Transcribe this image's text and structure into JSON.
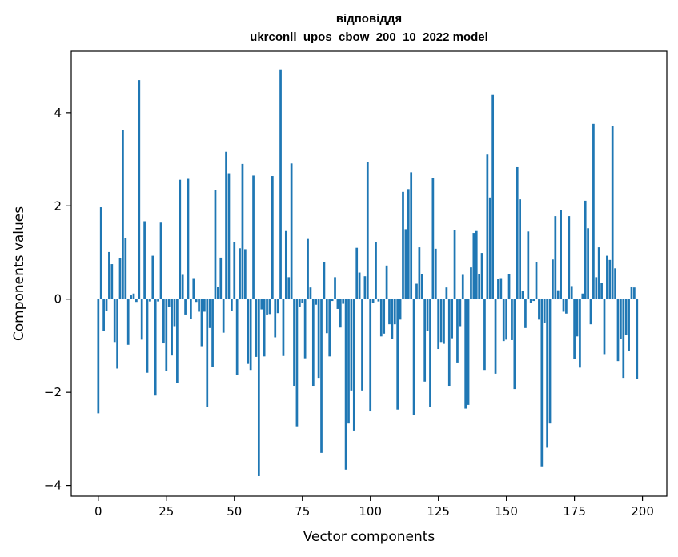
{
  "chart_data": {
    "type": "bar",
    "title_line1": "відповіддя",
    "title_line2": "ukrconll_upos_cbow_200_10_2022 model",
    "xlabel": "Vector components",
    "ylabel": "Components values",
    "xlim": [
      -9.95,
      208.95
    ],
    "ylim": [
      -4.23,
      5.32
    ],
    "x_ticks": [
      0,
      25,
      50,
      75,
      100,
      125,
      150,
      175,
      200
    ],
    "y_ticks": [
      -4,
      -2,
      0,
      2,
      4
    ],
    "y_tick_labels": [
      "−4",
      "−2",
      "0",
      "2",
      "4"
    ],
    "bar_color": "#1f77b4",
    "values": [
      -2.45,
      1.97,
      -0.68,
      -0.25,
      1.01,
      0.75,
      -0.92,
      -1.49,
      0.88,
      3.62,
      1.31,
      -0.98,
      0.08,
      0.12,
      -0.06,
      4.7,
      -0.87,
      1.67,
      -1.58,
      -0.05,
      0.93,
      -2.07,
      -0.05,
      1.64,
      -0.95,
      -1.54,
      -0.16,
      -1.21,
      -0.58,
      -1.8,
      2.56,
      0.52,
      -0.33,
      2.58,
      -0.43,
      0.45,
      -0.06,
      -0.27,
      -1.01,
      -0.27,
      -2.31,
      -0.62,
      -1.45,
      2.34,
      0.27,
      0.89,
      -0.72,
      3.16,
      2.7,
      -0.26,
      1.22,
      -1.62,
      1.09,
      2.9,
      1.07,
      -1.39,
      -1.52,
      2.65,
      -1.24,
      -3.8,
      -0.22,
      -1.23,
      -0.33,
      -0.32,
      2.64,
      -0.82,
      -0.3,
      4.93,
      -1.22,
      1.46,
      0.47,
      2.91,
      -1.86,
      -2.73,
      -0.17,
      -0.08,
      -1.27,
      1.29,
      0.25,
      -1.86,
      -0.12,
      -1.69,
      -3.3,
      0.8,
      -0.73,
      -1.23,
      -0.04,
      0.47,
      -0.21,
      -0.61,
      -0.1,
      -3.66,
      -2.67,
      -1.96,
      -2.82,
      1.1,
      0.57,
      -1.96,
      0.49,
      2.94,
      -2.41,
      -0.08,
      1.22,
      -0.05,
      -0.8,
      -0.74,
      0.72,
      -0.54,
      -0.85,
      -0.54,
      -2.37,
      -0.44,
      2.3,
      1.5,
      2.36,
      2.72,
      -2.48,
      0.33,
      1.11,
      0.54,
      -1.77,
      -0.69,
      -2.31,
      2.59,
      1.08,
      -1.07,
      -0.92,
      -0.96,
      0.25,
      -1.86,
      -0.84,
      1.48,
      -1.36,
      -0.58,
      0.52,
      -2.35,
      -2.27,
      0.68,
      1.42,
      1.46,
      0.54,
      0.99,
      -1.52,
      3.1,
      2.18,
      4.38,
      -1.6,
      0.43,
      0.45,
      -0.9,
      -0.87,
      0.54,
      -0.88,
      -1.93,
      2.83,
      2.14,
      0.18,
      -0.62,
      1.45,
      -0.08,
      -0.04,
      0.79,
      -0.44,
      -3.59,
      -0.52,
      -3.19,
      -2.67,
      0.85,
      1.78,
      0.19,
      1.91,
      -0.27,
      -0.31,
      1.78,
      0.28,
      -1.29,
      -0.8,
      -1.47,
      0.12,
      2.11,
      1.52,
      -0.54,
      3.76,
      0.47,
      1.11,
      0.35,
      -1.18,
      0.93,
      0.84,
      3.72,
      0.66,
      -1.33,
      -0.85,
      -1.69,
      -0.77,
      -1.12,
      0.26,
      0.25,
      -1.72
    ]
  }
}
